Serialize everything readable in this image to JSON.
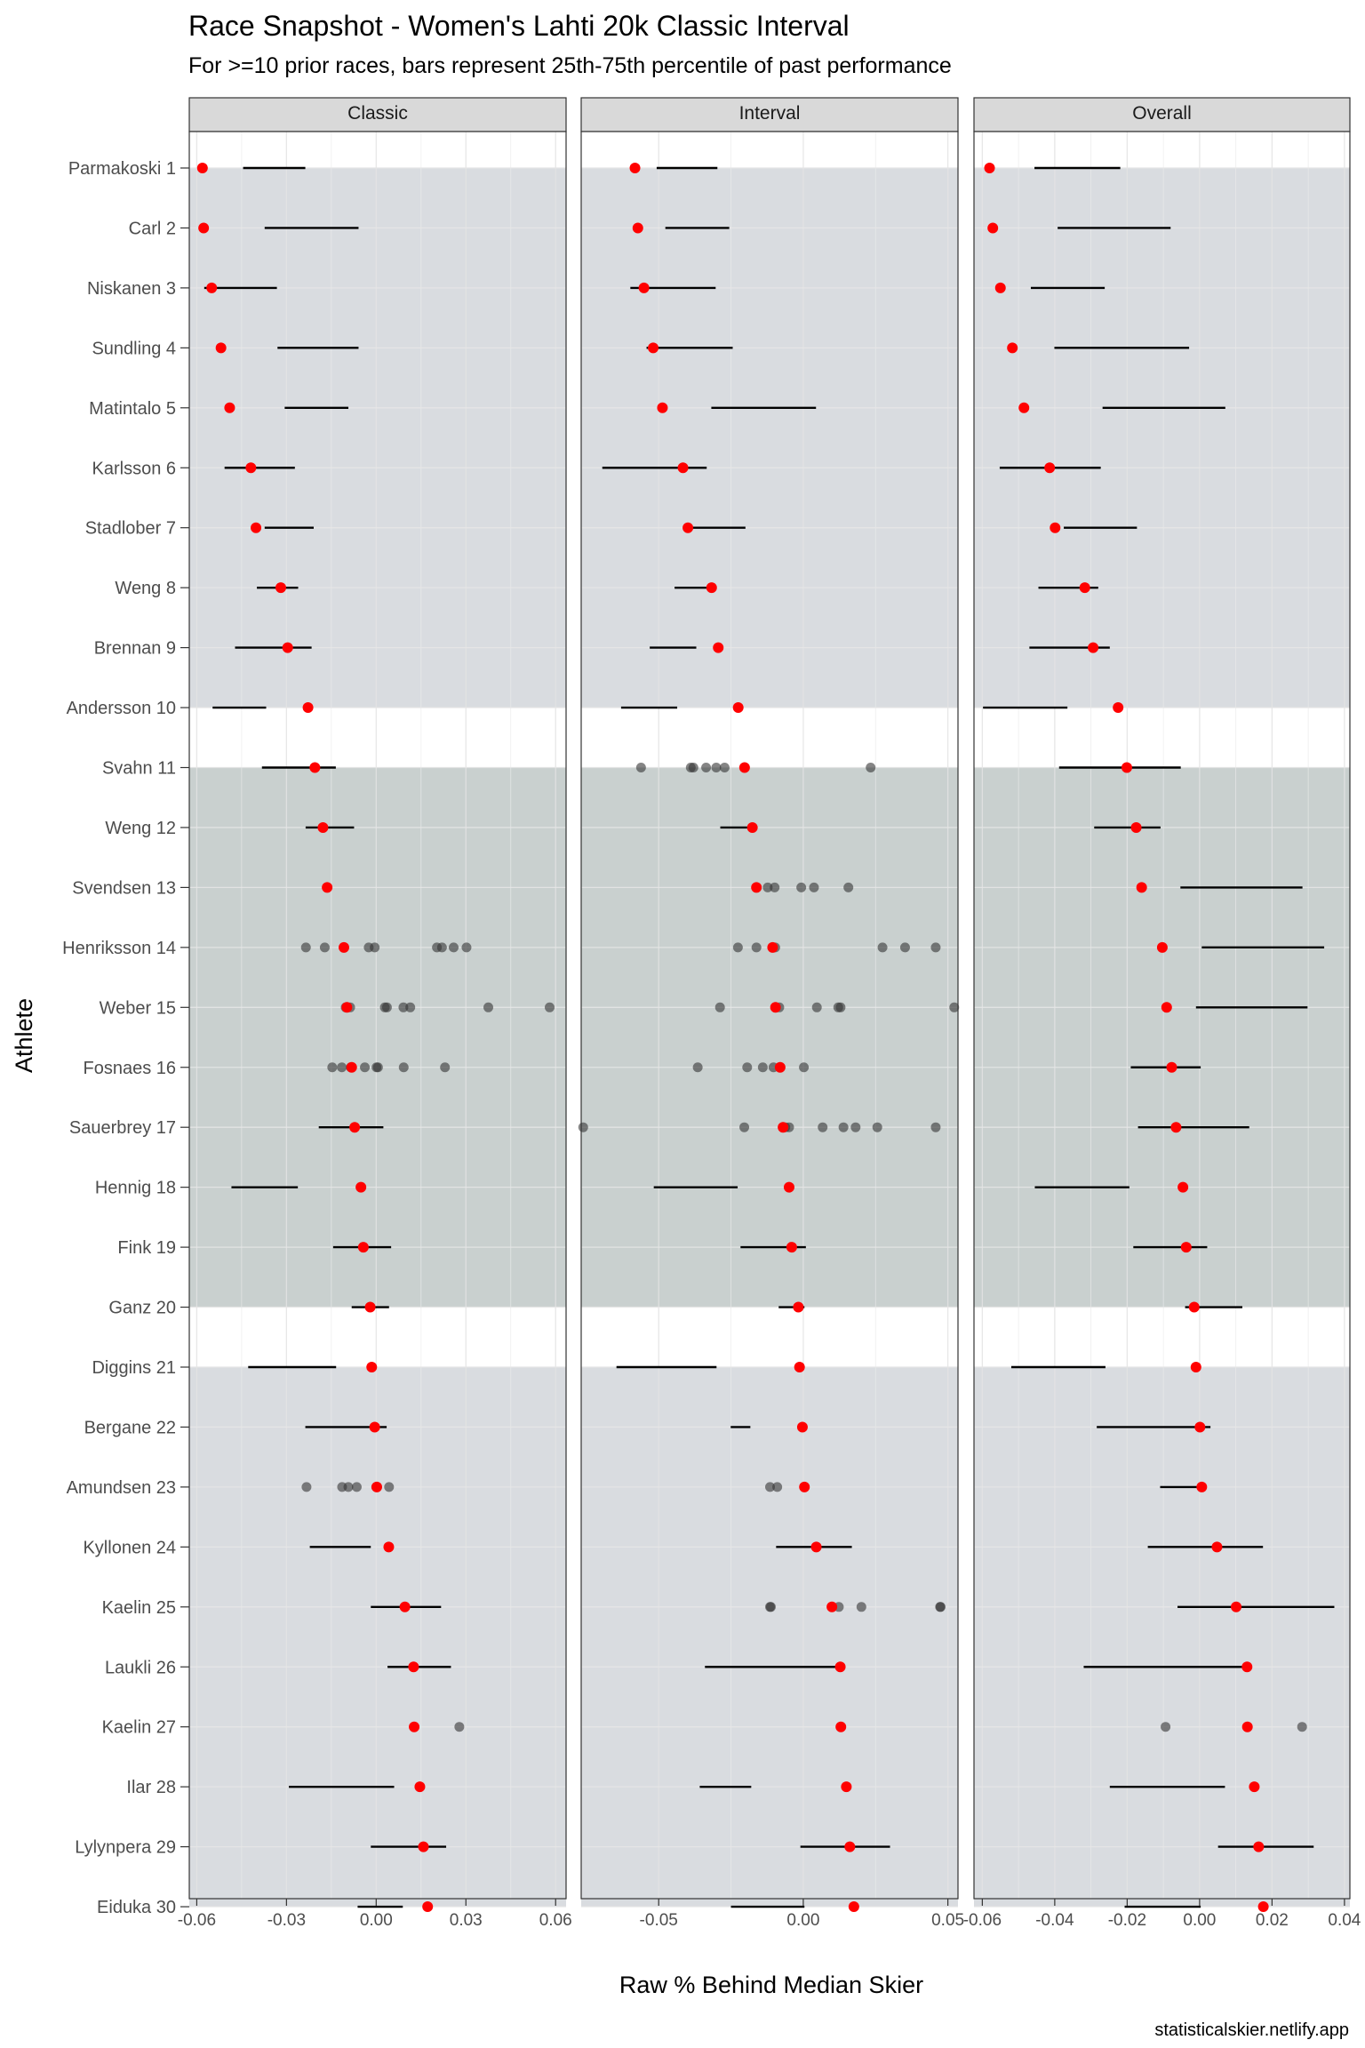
{
  "chart_data": {
    "type": "scatter",
    "title": "Race Snapshot -  Women's Lahti 20k Classic Interval",
    "subtitle": "For >=10 prior races, bars represent 25th-75th percentile of past performance",
    "xlabel": "Raw % Behind Median Skier",
    "ylabel": "Athlete",
    "caption": "statisticalskier.netlify.app",
    "grid": true,
    "colors": {
      "current_point": "#ff0000",
      "past_point": "#333333",
      "bar": "#000000",
      "band_light": "#d9dce0",
      "band_dark": "#c9d0cf",
      "strip": "#d9d9d9"
    },
    "athletes": [
      "Parmakoski 1",
      "Carl 2",
      "Niskanen 3",
      "Sundling 4",
      "Matintalo 5",
      "Karlsson 6",
      "Stadlober 7",
      "Weng 8",
      "Brennan 9",
      "Andersson 10",
      "Svahn 11",
      "Weng 12",
      "Svendsen 13",
      "Henriksson 14",
      "Weber 15",
      "Fosnaes 16",
      "Sauerbrey 17",
      "Hennig 18",
      "Fink 19",
      "Ganz 20",
      "Diggins 21",
      "Bergane 22",
      "Amundsen 23",
      "Kyllonen 24",
      "Kaelin 25",
      "Laukli 26",
      "Kaelin 27",
      "Ilar 28",
      "Lylynpera 29",
      "Eiduka 30"
    ],
    "bands": [
      {
        "from": 1,
        "to": 10,
        "shade": "light"
      },
      {
        "from": 11,
        "to": 20,
        "shade": "dark"
      },
      {
        "from": 21,
        "to": 30,
        "shade": "light"
      }
    ],
    "panels": [
      {
        "name": "Classic",
        "xlim": [
          -0.0625,
          0.0635
        ],
        "ticks": [
          -0.06,
          -0.03,
          0.0,
          0.03,
          0.06
        ],
        "tick_labels": [
          "-0.06",
          "-0.03",
          "0.00",
          "0.03",
          "0.06"
        ],
        "current": [
          -0.0581,
          -0.0577,
          -0.055,
          -0.0519,
          -0.049,
          -0.0419,
          -0.0402,
          -0.0319,
          -0.0296,
          -0.0228,
          -0.0205,
          -0.0178,
          -0.0164,
          -0.0108,
          -0.0098,
          -0.0082,
          -0.0072,
          -0.0051,
          -0.0043,
          -0.002,
          -0.0015,
          -0.0005,
          0.0002,
          0.0042,
          0.0096,
          0.0125,
          0.0127,
          0.0146,
          0.0158,
          0.0172
        ],
        "bars": [
          [
            -0.0445,
            -0.0237
          ],
          [
            -0.0373,
            -0.0059
          ],
          [
            -0.0575,
            -0.0332
          ],
          [
            -0.033,
            -0.0059
          ],
          [
            -0.0306,
            -0.0093
          ],
          [
            -0.0507,
            -0.0272
          ],
          [
            -0.0373,
            -0.0209
          ],
          [
            -0.0399,
            -0.0261
          ],
          [
            -0.0472,
            -0.0216
          ],
          [
            -0.0547,
            -0.0368
          ],
          [
            -0.0382,
            -0.0135
          ],
          [
            -0.0236,
            -0.0074
          ],
          null,
          null,
          null,
          null,
          [
            -0.0192,
            0.0024
          ],
          [
            -0.0484,
            -0.0262
          ],
          [
            -0.0144,
            0.005
          ],
          [
            -0.0082,
            0.0043
          ],
          [
            -0.0428,
            -0.0134
          ],
          [
            -0.0237,
            0.0035
          ],
          null,
          [
            -0.0222,
            -0.0018
          ],
          [
            -0.0018,
            0.0217
          ],
          [
            0.0038,
            0.025
          ],
          null,
          [
            -0.0292,
            0.006
          ],
          [
            -0.0018,
            0.0234
          ],
          [
            -0.0062,
            0.0089
          ]
        ],
        "past": [
          [],
          [],
          [],
          [],
          [],
          [],
          [],
          [],
          [],
          [],
          [],
          [],
          [],
          [
            -0.0235,
            -0.0172,
            -0.0025,
            -0.0005,
            0.0203,
            0.022,
            0.0259,
            0.0302
          ],
          [
            -0.0102,
            -0.0087,
            0.0029,
            0.0036,
            0.0091,
            0.0114,
            0.0375,
            0.058
          ],
          [
            -0.0147,
            -0.0115,
            -0.0085,
            -0.0038,
            0.0001,
            0.0006,
            0.0092,
            0.023
          ],
          [],
          [],
          [],
          [],
          [],
          [],
          [
            -0.0233,
            -0.0114,
            -0.0093,
            -0.0065,
            0.0,
            0.0043
          ],
          [],
          [],
          [],
          [
            0.0278
          ],
          [],
          [],
          []
        ]
      },
      {
        "name": "Interval",
        "xlim": [
          -0.0768,
          0.0535
        ],
        "ticks": [
          -0.05,
          0.0,
          0.05
        ],
        "tick_labels": [
          "-0.05",
          "0.00",
          "0.05"
        ],
        "current": [
          -0.0582,
          -0.0572,
          -0.0551,
          -0.0519,
          -0.0487,
          -0.0416,
          -0.0399,
          -0.0317,
          -0.0294,
          -0.0225,
          -0.0203,
          -0.0176,
          -0.0162,
          -0.0106,
          -0.0096,
          -0.008,
          -0.007,
          -0.0049,
          -0.004,
          -0.0017,
          -0.0013,
          -0.0003,
          0.0004,
          0.0045,
          0.0099,
          0.0128,
          0.013,
          0.0149,
          0.0161,
          0.0175
        ],
        "bars": [
          [
            -0.0507,
            -0.0297
          ],
          [
            -0.0477,
            -0.0256
          ],
          [
            -0.0598,
            -0.0303
          ],
          [
            -0.0542,
            -0.0244
          ],
          [
            -0.0318,
            0.0044
          ],
          [
            -0.0695,
            -0.0334
          ],
          [
            -0.0384,
            -0.02
          ],
          [
            -0.0445,
            -0.0306
          ],
          [
            -0.0531,
            -0.037
          ],
          [
            -0.063,
            -0.0436
          ],
          null,
          [
            -0.0287,
            -0.0159
          ],
          null,
          null,
          null,
          null,
          null,
          [
            -0.0517,
            -0.0227
          ],
          [
            -0.0217,
            0.0009
          ],
          [
            -0.0085,
            0.0004
          ],
          [
            -0.0646,
            -0.03
          ],
          [
            -0.0251,
            -0.0183
          ],
          null,
          [
            -0.0094,
            0.0168
          ],
          null,
          [
            -0.034,
            0.0127
          ],
          null,
          [
            -0.0358,
            -0.018
          ],
          [
            -0.001,
            0.03
          ],
          [
            -0.025,
            0.0004
          ]
        ],
        "past": [
          [],
          [],
          [],
          [],
          [],
          [],
          [],
          [],
          [],
          [],
          [
            -0.0561,
            -0.0389,
            -0.038,
            -0.0336,
            -0.0301,
            -0.0272,
            0.0233
          ],
          [],
          [
            -0.0123,
            -0.0099,
            -0.0007,
            0.0037,
            0.0156
          ],
          [
            -0.0226,
            -0.0162,
            -0.0097,
            0.0274,
            0.0352,
            0.0458
          ],
          [
            -0.0288,
            -0.0083,
            0.0047,
            0.0121,
            0.0129,
            0.0522
          ],
          [
            -0.0365,
            -0.0194,
            -0.014,
            -0.0103,
            -0.008,
            0.0002
          ],
          [
            -0.0761,
            -0.0204,
            -0.0062,
            -0.0049,
            0.0067,
            0.0139,
            0.0181,
            0.0256,
            0.0458
          ],
          [],
          [],
          [],
          [],
          [],
          [
            -0.0115,
            -0.009,
            0.0005
          ],
          [],
          [
            -0.0115,
            -0.0112,
            0.0123,
            0.0201,
            0.0473,
            0.0475
          ],
          [],
          [],
          [],
          [],
          []
        ]
      },
      {
        "name": "Overall",
        "xlim": [
          -0.0623,
          0.0415
        ],
        "ticks": [
          -0.06,
          -0.04,
          -0.02,
          0.0,
          0.02,
          0.04
        ],
        "tick_labels": [
          "-0.06",
          "-0.04",
          "-0.02",
          "0.00",
          "0.02",
          "0.04"
        ],
        "current": [
          -0.058,
          -0.0571,
          -0.055,
          -0.0517,
          -0.0485,
          -0.0414,
          -0.0399,
          -0.0317,
          -0.0294,
          -0.0225,
          -0.0201,
          -0.0175,
          -0.016,
          -0.0103,
          -0.0091,
          -0.0077,
          -0.0065,
          -0.0046,
          -0.0037,
          -0.0015,
          -0.001,
          0.0001,
          0.0006,
          0.0048,
          0.0101,
          0.0131,
          0.0132,
          0.0151,
          0.0163,
          0.0176
        ],
        "bars": [
          [
            -0.0456,
            -0.0219
          ],
          [
            -0.0392,
            -0.008
          ],
          [
            -0.0466,
            -0.0262
          ],
          [
            -0.0401,
            -0.0029
          ],
          [
            -0.0268,
            0.0071
          ],
          [
            -0.0552,
            -0.0273
          ],
          [
            -0.0375,
            -0.0173
          ],
          [
            -0.0445,
            -0.028
          ],
          [
            -0.047,
            -0.0248
          ],
          [
            -0.0598,
            -0.0365
          ],
          [
            -0.0388,
            -0.0052
          ],
          [
            -0.0291,
            -0.0108
          ],
          [
            -0.0053,
            0.0284
          ],
          [
            0.0006,
            0.0344
          ],
          [
            -0.001,
            0.0298
          ],
          [
            -0.019,
            0.0003
          ],
          [
            -0.017,
            0.0137
          ],
          [
            -0.0455,
            -0.0194
          ],
          [
            -0.0183,
            0.0021
          ],
          [
            -0.004,
            0.0118
          ],
          [
            -0.052,
            -0.026
          ],
          [
            -0.0284,
            0.003
          ],
          [
            -0.0109,
            0.0003
          ],
          [
            -0.0143,
            0.0175
          ],
          [
            -0.0061,
            0.0372
          ],
          [
            -0.032,
            0.0125
          ],
          null,
          [
            -0.0248,
            0.007
          ],
          [
            0.0051,
            0.0315
          ],
          [
            -0.0207,
            0.0003
          ]
        ],
        "past": [
          [],
          [],
          [],
          [],
          [],
          [],
          [],
          [],
          [],
          [],
          [],
          [],
          [],
          [],
          [],
          [],
          [],
          [],
          [],
          [],
          [],
          [],
          [],
          [],
          [],
          [],
          [
            -0.0094,
            0.0283
          ],
          [],
          [],
          []
        ]
      }
    ]
  }
}
